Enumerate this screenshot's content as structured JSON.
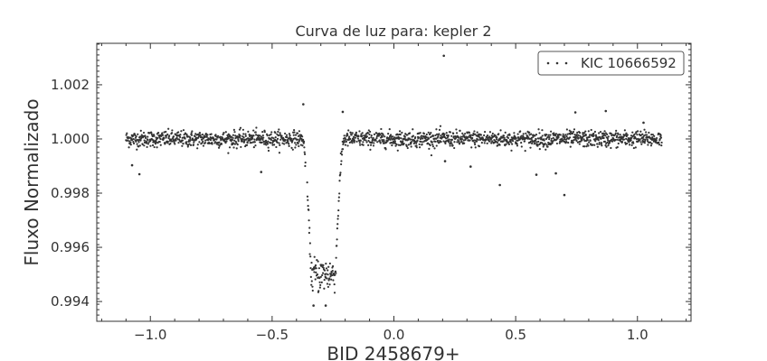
{
  "chart_data": {
    "type": "scatter",
    "title": "Curva de luz para: kepler 2",
    "xlabel": "BID 2458679+",
    "ylabel": "Fluxo Normalizado",
    "xlim": [
      -1.22,
      1.22
    ],
    "ylim": [
      0.99327,
      1.00353
    ],
    "xticks": [
      -1.0,
      -0.5,
      0.0,
      0.5,
      1.0
    ],
    "xtick_labels": [
      "−1.0",
      "−0.5",
      "0.0",
      "0.5",
      "1.0"
    ],
    "yticks": [
      0.994,
      0.996,
      0.998,
      1.0,
      1.002
    ],
    "ytick_labels": [
      "0.994",
      "0.996",
      "0.998",
      "1.000",
      "1.002"
    ],
    "grid": false,
    "legend": {
      "position": "top-right",
      "entries": [
        "KIC 10666592"
      ]
    },
    "marker_color": "#333333",
    "series": [
      {
        "name": "KIC 10666592",
        "x_range": [
          -1.1,
          1.1
        ],
        "baseline": 1.0,
        "scatter": 0.00015,
        "transit": {
          "ingress_start": -0.375,
          "bottom_start": -0.34,
          "bottom_end": -0.24,
          "egress_end": -0.205,
          "depth": 0.005
        },
        "outliers": [
          [
            0.205,
            1.00307
          ],
          [
            -1.075,
            0.99903
          ],
          [
            -1.045,
            0.9987
          ],
          [
            -0.545,
            0.99878
          ],
          [
            0.21,
            0.99918
          ],
          [
            0.315,
            0.99898
          ],
          [
            0.435,
            0.9983
          ],
          [
            0.585,
            0.99868
          ],
          [
            0.665,
            0.99873
          ],
          [
            0.7,
            0.99793
          ],
          [
            0.745,
            1.00098
          ],
          [
            0.87,
            1.00103
          ],
          [
            1.025,
            1.0006
          ],
          [
            -0.372,
            1.00128
          ],
          [
            -0.21,
            1.001
          ],
          [
            -0.33,
            0.99385
          ],
          [
            -0.28,
            0.99385
          ]
        ]
      }
    ]
  }
}
